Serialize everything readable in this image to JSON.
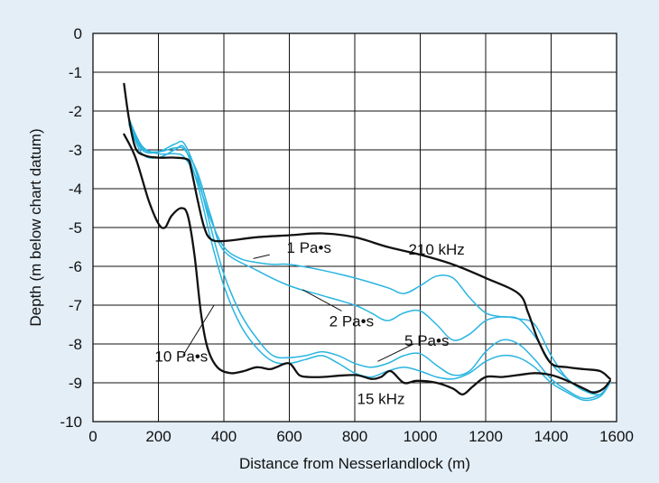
{
  "colors": {
    "background": "#e3eef7",
    "grid": "#111111",
    "black_curves": "#111111",
    "cyan_curves": "#29b5e0"
  },
  "chart_data": {
    "type": "line",
    "title": "",
    "xlabel": "Distance from Nesserlandlock (m)",
    "ylabel": "Depth (m below chart datum)",
    "xlim": [
      0,
      1600
    ],
    "ylim": [
      -10,
      0
    ],
    "xticks": [
      "0",
      "200",
      "400",
      "600",
      "800",
      "1000",
      "1200",
      "1400",
      "1600"
    ],
    "yticks": [
      "0",
      "-1",
      "-2",
      "-3",
      "-4",
      "-5",
      "-6",
      "-7",
      "-8",
      "-9",
      "-10"
    ],
    "grid": true,
    "series": [
      {
        "name": "210 kHz",
        "color": "black",
        "x": [
          95,
          110,
          130,
          160,
          200,
          250,
          290,
          300,
          320,
          340,
          360,
          400,
          500,
          600,
          700,
          800,
          900,
          1000,
          1100,
          1200,
          1300,
          1330,
          1360,
          1400,
          1450,
          1500,
          1550,
          1580
        ],
        "y": [
          -1.3,
          -2.2,
          -2.95,
          -3.15,
          -3.2,
          -3.2,
          -3.25,
          -3.5,
          -4.3,
          -5.0,
          -5.3,
          -5.35,
          -5.25,
          -5.2,
          -5.15,
          -5.25,
          -5.5,
          -5.7,
          -5.95,
          -6.3,
          -6.7,
          -7.2,
          -7.9,
          -8.5,
          -8.6,
          -8.65,
          -8.7,
          -8.9
        ]
      },
      {
        "name": "15 kHz",
        "color": "black",
        "x": [
          95,
          130,
          170,
          200,
          220,
          240,
          270,
          290,
          310,
          330,
          350,
          380,
          420,
          460,
          500,
          540,
          560,
          600,
          630,
          660,
          700,
          800,
          850,
          880,
          910,
          950,
          990,
          1050,
          1100,
          1130,
          1160,
          1200,
          1250,
          1300,
          1350,
          1400,
          1450,
          1500,
          1530,
          1560,
          1580
        ],
        "y": [
          -2.6,
          -3.2,
          -4.3,
          -4.9,
          -5.0,
          -4.7,
          -4.5,
          -4.7,
          -5.7,
          -7.2,
          -8.1,
          -8.6,
          -8.75,
          -8.7,
          -8.6,
          -8.65,
          -8.6,
          -8.5,
          -8.8,
          -8.85,
          -8.85,
          -8.8,
          -8.9,
          -8.85,
          -8.7,
          -9.0,
          -8.95,
          -9.0,
          -9.15,
          -9.3,
          -9.1,
          -8.85,
          -8.85,
          -8.8,
          -8.75,
          -8.8,
          -8.95,
          -9.15,
          -9.25,
          -9.15,
          -8.95
        ]
      },
      {
        "name": "1 Pa•s",
        "color": "cyan",
        "x": [
          110,
          150,
          200,
          250,
          280,
          320,
          360,
          400,
          450,
          500,
          550,
          600,
          700,
          800,
          900,
          950,
          1000,
          1050,
          1100,
          1150,
          1200,
          1250,
          1300,
          1350,
          1400,
          1450,
          1500,
          1550,
          1580
        ],
        "y": [
          -2.2,
          -2.9,
          -3.1,
          -3.1,
          -3.2,
          -3.8,
          -4.8,
          -5.5,
          -5.8,
          -5.9,
          -5.95,
          -5.95,
          -6.1,
          -6.3,
          -6.55,
          -6.7,
          -6.5,
          -6.25,
          -6.3,
          -6.8,
          -7.2,
          -7.3,
          -7.35,
          -7.8,
          -8.5,
          -8.9,
          -9.2,
          -9.2,
          -9.0
        ]
      },
      {
        "name": "2 Pa•s",
        "color": "cyan",
        "x": [
          110,
          150,
          200,
          250,
          280,
          320,
          360,
          400,
          500,
          600,
          700,
          800,
          850,
          900,
          950,
          1000,
          1050,
          1100,
          1150,
          1200,
          1250,
          1300,
          1350,
          1400,
          1450,
          1500,
          1550,
          1580
        ],
        "y": [
          -2.25,
          -2.95,
          -3.05,
          -2.95,
          -3.0,
          -3.6,
          -4.7,
          -5.6,
          -6.1,
          -6.5,
          -6.75,
          -7.0,
          -7.2,
          -7.4,
          -7.2,
          -7.15,
          -7.5,
          -7.9,
          -7.75,
          -7.4,
          -7.3,
          -7.35,
          -7.5,
          -8.3,
          -8.9,
          -9.2,
          -9.3,
          -9.0
        ]
      },
      {
        "name": "5 Pa•s",
        "color": "cyan",
        "x": [
          110,
          150,
          200,
          250,
          280,
          320,
          360,
          400,
          450,
          500,
          550,
          600,
          650,
          700,
          750,
          800,
          850,
          900,
          950,
          1000,
          1050,
          1100,
          1150,
          1200,
          1250,
          1300,
          1350,
          1400,
          1450,
          1500,
          1550,
          1580
        ],
        "y": [
          -2.3,
          -3.0,
          -3.05,
          -2.85,
          -2.85,
          -3.7,
          -5.0,
          -6.2,
          -7.2,
          -7.85,
          -8.3,
          -8.35,
          -8.3,
          -8.2,
          -8.3,
          -8.5,
          -8.6,
          -8.5,
          -8.3,
          -8.25,
          -8.55,
          -8.8,
          -8.7,
          -8.2,
          -7.9,
          -8.0,
          -8.4,
          -8.9,
          -9.2,
          -9.4,
          -9.3,
          -9.0
        ]
      },
      {
        "name": "10 Pa•s",
        "color": "cyan",
        "x": [
          110,
          150,
          200,
          250,
          280,
          320,
          360,
          400,
          450,
          500,
          550,
          600,
          650,
          700,
          750,
          800,
          850,
          900,
          950,
          1000,
          1050,
          1100,
          1150,
          1200,
          1250,
          1300,
          1350,
          1400,
          1450,
          1500,
          1550,
          1580
        ],
        "y": [
          -2.35,
          -3.1,
          -3.2,
          -3.0,
          -2.95,
          -3.9,
          -5.3,
          -6.5,
          -7.5,
          -8.1,
          -8.45,
          -8.5,
          -8.4,
          -8.3,
          -8.5,
          -8.75,
          -8.85,
          -8.7,
          -8.6,
          -8.7,
          -8.85,
          -8.9,
          -8.75,
          -8.45,
          -8.3,
          -8.35,
          -8.6,
          -9.0,
          -9.25,
          -9.45,
          -9.35,
          -9.0
        ]
      }
    ],
    "annotations": [
      {
        "text": "210 kHz",
        "x": 1050,
        "y": -5.7
      },
      {
        "text": "15 kHz",
        "x": 880,
        "y": -9.55
      },
      {
        "text": "1 Pa•s",
        "x": 660,
        "y": -5.65
      },
      {
        "text": "2 Pa•s",
        "x": 790,
        "y": -7.55
      },
      {
        "text": "5 Pa•s",
        "x": 1020,
        "y": -8.05
      },
      {
        "text": "10 Pa•s",
        "x": 270,
        "y": -8.45
      }
    ]
  }
}
